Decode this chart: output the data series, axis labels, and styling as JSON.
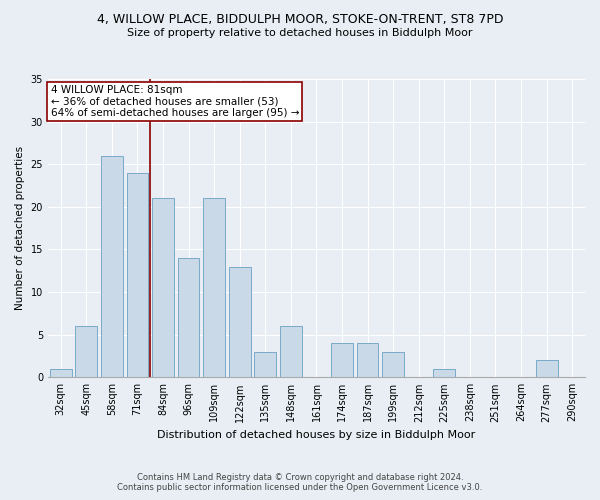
{
  "title": "4, WILLOW PLACE, BIDDULPH MOOR, STOKE-ON-TRENT, ST8 7PD",
  "subtitle": "Size of property relative to detached houses in Biddulph Moor",
  "xlabel": "Distribution of detached houses by size in Biddulph Moor",
  "ylabel": "Number of detached properties",
  "categories": [
    "32sqm",
    "45sqm",
    "58sqm",
    "71sqm",
    "84sqm",
    "96sqm",
    "109sqm",
    "122sqm",
    "135sqm",
    "148sqm",
    "161sqm",
    "174sqm",
    "187sqm",
    "199sqm",
    "212sqm",
    "225sqm",
    "238sqm",
    "251sqm",
    "264sqm",
    "277sqm",
    "290sqm"
  ],
  "values": [
    1,
    6,
    26,
    24,
    21,
    14,
    21,
    13,
    3,
    6,
    0,
    4,
    4,
    3,
    0,
    1,
    0,
    0,
    0,
    2,
    0
  ],
  "bar_color": "#c9d9e8",
  "bar_edge_color": "#7aaac8",
  "ylim": [
    0,
    35
  ],
  "yticks": [
    0,
    5,
    10,
    15,
    20,
    25,
    30,
    35
  ],
  "property_label": "4 WILLOW PLACE: 81sqm",
  "annotation_line1": "← 36% of detached houses are smaller (53)",
  "annotation_line2": "64% of semi-detached houses are larger (95) →",
  "vline_position": 3.5,
  "footer_line1": "Contains HM Land Registry data © Crown copyright and database right 2024.",
  "footer_line2": "Contains public sector information licensed under the Open Government Licence v3.0.",
  "background_color": "#e8eef4",
  "plot_background": "#e8eef4",
  "grid_color": "#ffffff",
  "title_fontsize": 9,
  "subtitle_fontsize": 8,
  "xlabel_fontsize": 8,
  "ylabel_fontsize": 7.5,
  "tick_fontsize": 7,
  "annot_fontsize": 7.5,
  "footer_fontsize": 6
}
